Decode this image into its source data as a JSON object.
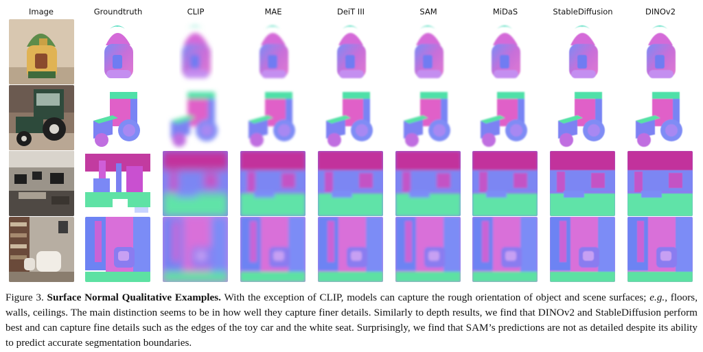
{
  "columns": [
    "Image",
    "Groundtruth",
    "CLIP",
    "MAE",
    "DeiT III",
    "SAM",
    "MiDaS",
    "StableDiffusion",
    "DINOv2"
  ],
  "rows": [
    {
      "kind": "house"
    },
    {
      "kind": "tractor"
    },
    {
      "kind": "office"
    },
    {
      "kind": "room"
    }
  ],
  "caption": {
    "label": "Figure 3.",
    "title": "Surface Normal Qualitative Examples.",
    "part1": "With the exception of CLIP, models can capture the rough orientation of object and scene surfaces;",
    "eg": "e.g.",
    "part2": ", floors, walls, ceilings. The main distinction seems to be in how well they capture finer details. Similarly to depth results, we find that DINOv2 and StableDiffusion perform best and can capture fine details such as the edges of the toy car and the white seat. Surprisingly, we find that SAM’s predictions are not as detailed despite its ability to predict accurate segmentation boundaries."
  },
  "colors": {
    "magenta": "#c83fb0",
    "blue": "#6f86f3",
    "green": "#63e2a8",
    "violet": "#8a70e8"
  }
}
